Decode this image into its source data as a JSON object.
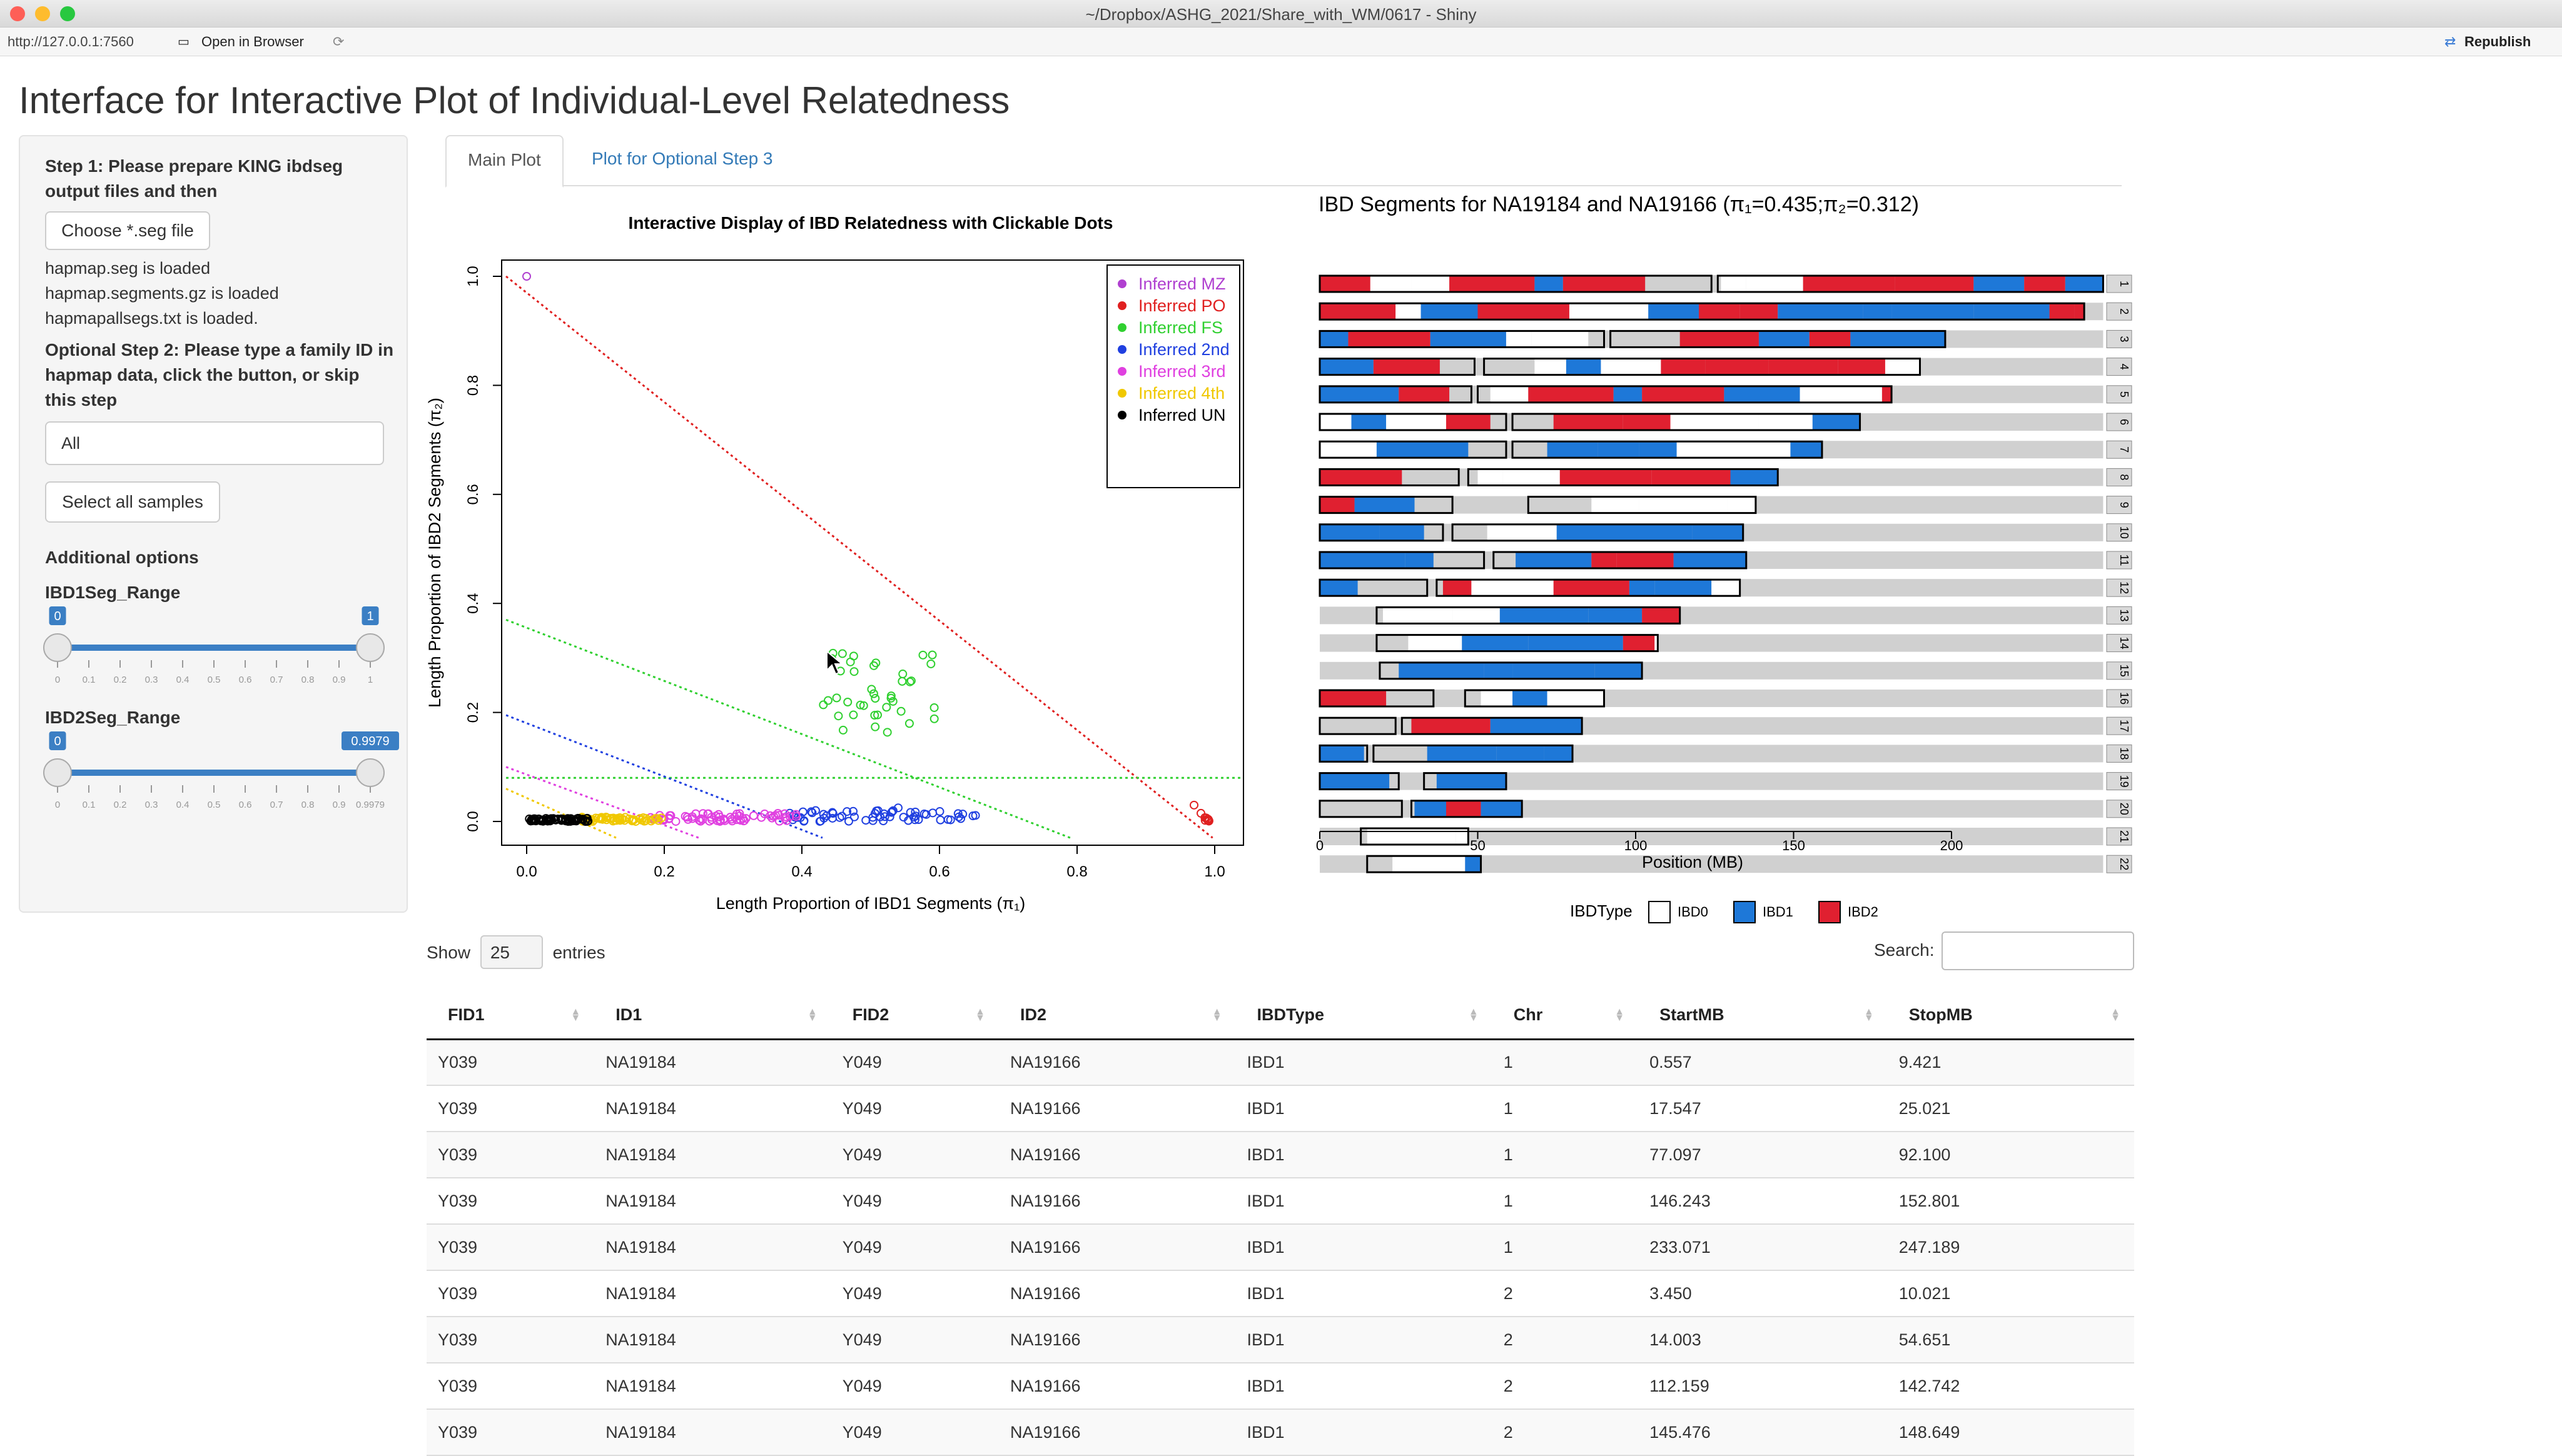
{
  "window": {
    "title": "~/Dropbox/ASHG_2021/Share_with_WM/0617 - Shiny",
    "url": "http://127.0.0.1:7560",
    "open_in_browser": "Open in Browser",
    "republish": "Republish"
  },
  "page": {
    "title": "Interface for Interactive Plot of Individual-Level Relatedness"
  },
  "sidebar": {
    "step1": "Step 1: Please prepare KING ibdseg output files and then",
    "choose_btn": "Choose *.seg file",
    "loaded": [
      "hapmap.seg is loaded",
      "hapmap.segments.gz is loaded",
      "hapmapallsegs.txt is loaded."
    ],
    "step2": "Optional Step 2: Please type a family ID in hapmap data, click the button, or skip this step",
    "family_value": "All",
    "select_all": "Select all samples",
    "additional": "Additional options",
    "ibd1": {
      "label": "IBD1Seg_Range",
      "min": "0",
      "max": "1",
      "value_lo": 0,
      "value_hi": 1
    },
    "ibd2": {
      "label": "IBD2Seg_Range",
      "min": "0",
      "max": "0.9979",
      "value_lo": 0,
      "value_hi": 0.9979
    },
    "ticks1": [
      "0",
      "0.1",
      "0.2",
      "0.3",
      "0.4",
      "0.5",
      "0.6",
      "0.7",
      "0.8",
      "0.9",
      "1"
    ],
    "ticks2": [
      "0",
      "0.1",
      "0.2",
      "0.3",
      "0.4",
      "0.5",
      "0.6",
      "0.7",
      "0.8",
      "0.9",
      "0.9979"
    ]
  },
  "tabs": [
    "Main Plot",
    "Plot for Optional Step 3"
  ],
  "scatter": {
    "title": "Interactive Display of IBD Relatedness with Clickable Dots",
    "xlabel": "Length Proportion of IBD1 Segments (π₁)",
    "ylabel": "Length Proportion of IBD2 Segments (π₂)",
    "legend": [
      {
        "name": "Inferred MZ",
        "color": "#b040d0"
      },
      {
        "name": "Inferred PO",
        "color": "#e02020"
      },
      {
        "name": "Inferred FS",
        "color": "#30d030"
      },
      {
        "name": "Inferred 2nd",
        "color": "#2040e0"
      },
      {
        "name": "Inferred 3rd",
        "color": "#e040e0"
      },
      {
        "name": "Inferred 4th",
        "color": "#f0c800"
      },
      {
        "name": "Inferred UN",
        "color": "#000000"
      }
    ],
    "xticks": [
      "0.0",
      "0.2",
      "0.4",
      "0.6",
      "0.8",
      "1.0"
    ],
    "yticks": [
      "0.0",
      "0.2",
      "0.4",
      "0.6",
      "0.8",
      "1.0"
    ]
  },
  "segplot": {
    "title": "IBD Segments for NA19184 and NA19166 (π₁=0.435;π₂=0.312)",
    "xlabel": "Position (MB)",
    "xticks": [
      "0",
      "50",
      "100",
      "150",
      "200"
    ],
    "legend_title": "IBDType",
    "legend": [
      {
        "name": "IBD0",
        "color": "#ffffff"
      },
      {
        "name": "IBD1",
        "color": "#1e78d8"
      },
      {
        "name": "IBD2",
        "color": "#e02030"
      }
    ],
    "chromosomes": [
      "1",
      "2",
      "3",
      "4",
      "5",
      "6",
      "7",
      "8",
      "9",
      "10",
      "11",
      "12",
      "13",
      "14",
      "15",
      "16",
      "17",
      "18",
      "19",
      "20",
      "21",
      "22"
    ]
  },
  "table": {
    "show": "Show",
    "entries_value": "25",
    "entries": "entries",
    "search": "Search:",
    "headers": [
      "FID1",
      "ID1",
      "FID2",
      "ID2",
      "IBDType",
      "Chr",
      "StartMB",
      "StopMB"
    ],
    "rows": [
      [
        "Y039",
        "NA19184",
        "Y049",
        "NA19166",
        "IBD1",
        "1",
        "0.557",
        "9.421"
      ],
      [
        "Y039",
        "NA19184",
        "Y049",
        "NA19166",
        "IBD1",
        "1",
        "17.547",
        "25.021"
      ],
      [
        "Y039",
        "NA19184",
        "Y049",
        "NA19166",
        "IBD1",
        "1",
        "77.097",
        "92.100"
      ],
      [
        "Y039",
        "NA19184",
        "Y049",
        "NA19166",
        "IBD1",
        "1",
        "146.243",
        "152.801"
      ],
      [
        "Y039",
        "NA19184",
        "Y049",
        "NA19166",
        "IBD1",
        "1",
        "233.071",
        "247.189"
      ],
      [
        "Y039",
        "NA19184",
        "Y049",
        "NA19166",
        "IBD1",
        "2",
        "3.450",
        "10.021"
      ],
      [
        "Y039",
        "NA19184",
        "Y049",
        "NA19166",
        "IBD1",
        "2",
        "14.003",
        "54.651"
      ],
      [
        "Y039",
        "NA19184",
        "Y049",
        "NA19166",
        "IBD1",
        "2",
        "112.159",
        "142.742"
      ],
      [
        "Y039",
        "NA19184",
        "Y049",
        "NA19166",
        "IBD1",
        "2",
        "145.476",
        "148.649"
      ]
    ]
  }
}
